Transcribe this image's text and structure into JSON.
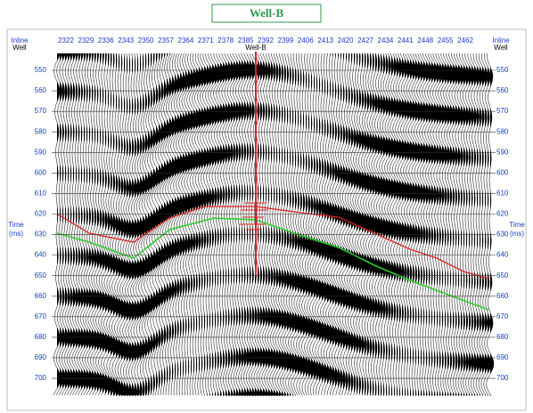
{
  "header": {
    "title": "Well-B"
  },
  "axes": {
    "top_left": {
      "label": "Inline",
      "sub": "Well"
    },
    "top_right": {
      "label": "Inline",
      "sub": "Well"
    },
    "inlines": [
      2322,
      2329,
      2336,
      2343,
      2350,
      2357,
      2364,
      2371,
      2378,
      2385,
      2392,
      2399,
      2406,
      2413,
      2420,
      2427,
      2434,
      2441,
      2448,
      2455,
      2462
    ],
    "well_label": "Well-B",
    "time_ticks": [
      550,
      560,
      570,
      580,
      590,
      600,
      610,
      620,
      630,
      640,
      650,
      660,
      670,
      680,
      690,
      700
    ],
    "left_title": {
      "label": "Time",
      "unit": "(ms)"
    },
    "right_title": {
      "label": "Time",
      "unit": "(ms)"
    }
  }
}
